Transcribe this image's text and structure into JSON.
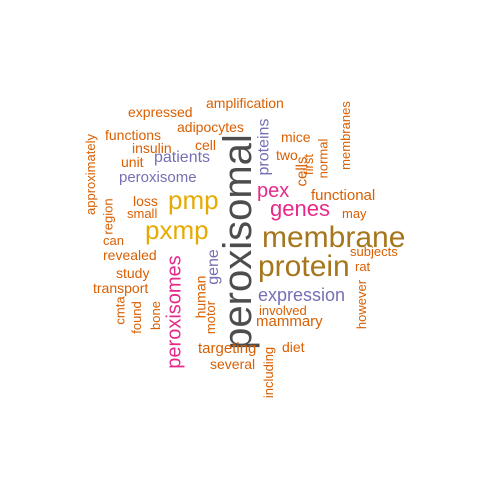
{
  "words": {
    "peroxisomal": "peroxisomal",
    "membrane": "membrane",
    "protein": "protein",
    "pmp": "pmp",
    "pxmp": "pxmp",
    "genes": "genes",
    "pex": "pex",
    "peroxisomes": "peroxisomes",
    "expression": "expression",
    "proteins": "proteins",
    "gene": "gene",
    "patients": "patients",
    "peroxisome": "peroxisome",
    "functional": "functional",
    "cells": "cells",
    "mammary": "mammary",
    "involved": "involved",
    "targeting": "targeting",
    "human": "human",
    "expressed": "expressed",
    "amplification": "amplification",
    "adipocytes": "adipocytes",
    "functions": "functions",
    "insulin": "insulin",
    "cell": "cell",
    "unit": "unit",
    "mice": "mice",
    "two": "two",
    "first": "first",
    "normal": "normal",
    "membranes": "membranes",
    "approximately": "approximately",
    "region": "region",
    "loss": "loss",
    "small": "small",
    "can": "can",
    "revealed": "revealed",
    "study": "study",
    "transport": "transport",
    "cmta": "cmta",
    "found": "found",
    "bone": "bone",
    "motor": "motor",
    "may": "may",
    "subjects": "subjects",
    "rat": "rat",
    "however": "however",
    "diet": "diet",
    "several": "several",
    "including": "including"
  },
  "colors": {
    "dark_gray": "#4d4d4d",
    "brown": "#a6761d",
    "gold": "#e6ab02",
    "magenta": "#e7298a",
    "purple": "#7570b3",
    "orange": "#d95f02"
  }
}
